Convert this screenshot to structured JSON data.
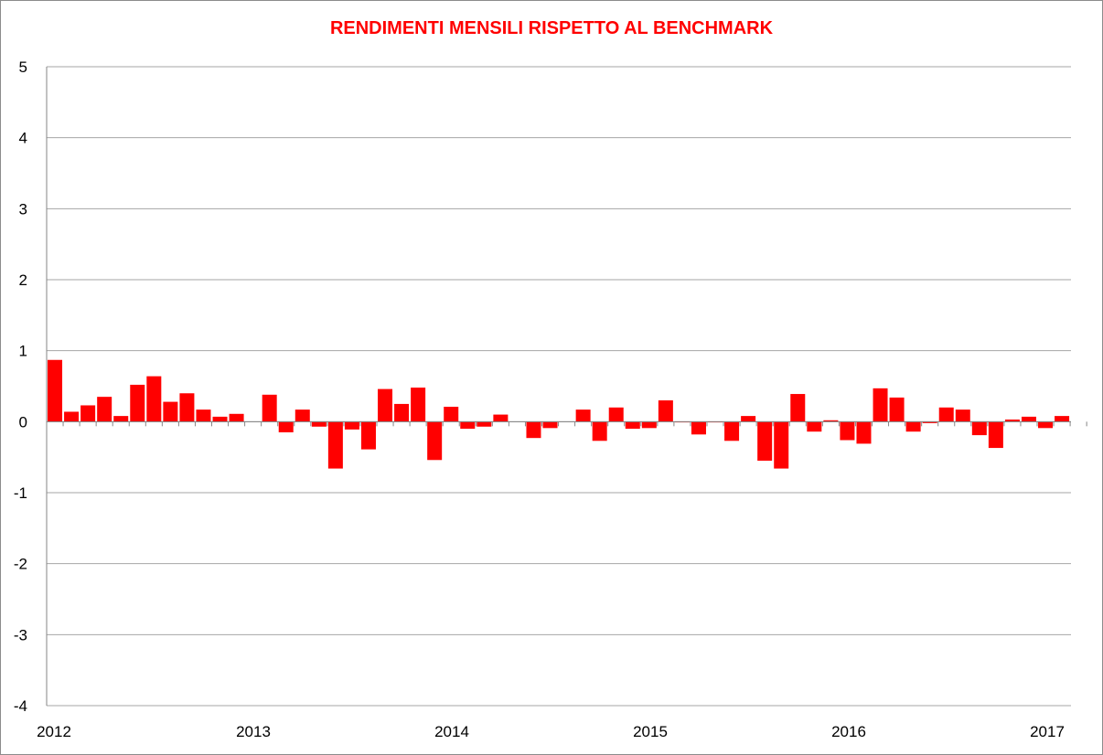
{
  "chart_data": {
    "type": "bar",
    "title": "RENDIMENTI MENSILI RISPETTO AL BENCHMARK",
    "xlabel": "",
    "ylabel": "",
    "ylim": [
      -4,
      5
    ],
    "yticks": [
      5,
      4,
      3,
      2,
      1,
      0,
      -1,
      -2,
      -3,
      -4
    ],
    "xtick_labels": [
      "2012",
      "2013",
      "2014",
      "2015",
      "2016",
      "2017"
    ],
    "grid": true,
    "legend": "none",
    "colors": {
      "bar": "#ff0000",
      "title": "#ff0000",
      "grid": "#a6a6a6",
      "axis": "#868686"
    },
    "categories": [
      "2012-01",
      "2012-02",
      "2012-03",
      "2012-04",
      "2012-05",
      "2012-06",
      "2012-07",
      "2012-08",
      "2012-09",
      "2012-10",
      "2012-11",
      "2012-12",
      "2013-01",
      "2013-02",
      "2013-03",
      "2013-04",
      "2013-05",
      "2013-06",
      "2013-07",
      "2013-08",
      "2013-09",
      "2013-10",
      "2013-11",
      "2013-12",
      "2014-01",
      "2014-02",
      "2014-03",
      "2014-04",
      "2014-05",
      "2014-06",
      "2014-07",
      "2014-08",
      "2014-09",
      "2014-10",
      "2014-11",
      "2014-12",
      "2015-01",
      "2015-02",
      "2015-03",
      "2015-04",
      "2015-05",
      "2015-06",
      "2015-07",
      "2015-08",
      "2015-09",
      "2015-10",
      "2015-11",
      "2015-12",
      "2016-01",
      "2016-02",
      "2016-03",
      "2016-04",
      "2016-05",
      "2016-06",
      "2016-07",
      "2016-08",
      "2016-09",
      "2016-10",
      "2016-11",
      "2016-12",
      "2017-01",
      "2017-02",
      "2017-03"
    ],
    "values": [
      0.87,
      0.14,
      0.23,
      0.35,
      0.08,
      0.52,
      0.64,
      0.28,
      0.4,
      0.17,
      0.07,
      0.11,
      0.0,
      0.38,
      -0.15,
      0.17,
      -0.07,
      -0.66,
      -0.11,
      -0.39,
      0.46,
      0.25,
      0.48,
      -0.54,
      0.21,
      -0.1,
      -0.07,
      0.1,
      0.0,
      -0.23,
      -0.09,
      0.0,
      0.17,
      -0.27,
      0.2,
      -0.1,
      -0.09,
      0.3,
      -0.01,
      -0.18,
      -0.01,
      -0.27,
      0.08,
      -0.55,
      -0.66,
      0.39,
      -0.14,
      0.02,
      -0.26,
      -0.31,
      0.47,
      0.34,
      -0.14,
      -0.02,
      0.2,
      0.17,
      -0.19,
      -0.37,
      0.03,
      0.07,
      -0.09,
      0.08,
      0.0
    ]
  }
}
